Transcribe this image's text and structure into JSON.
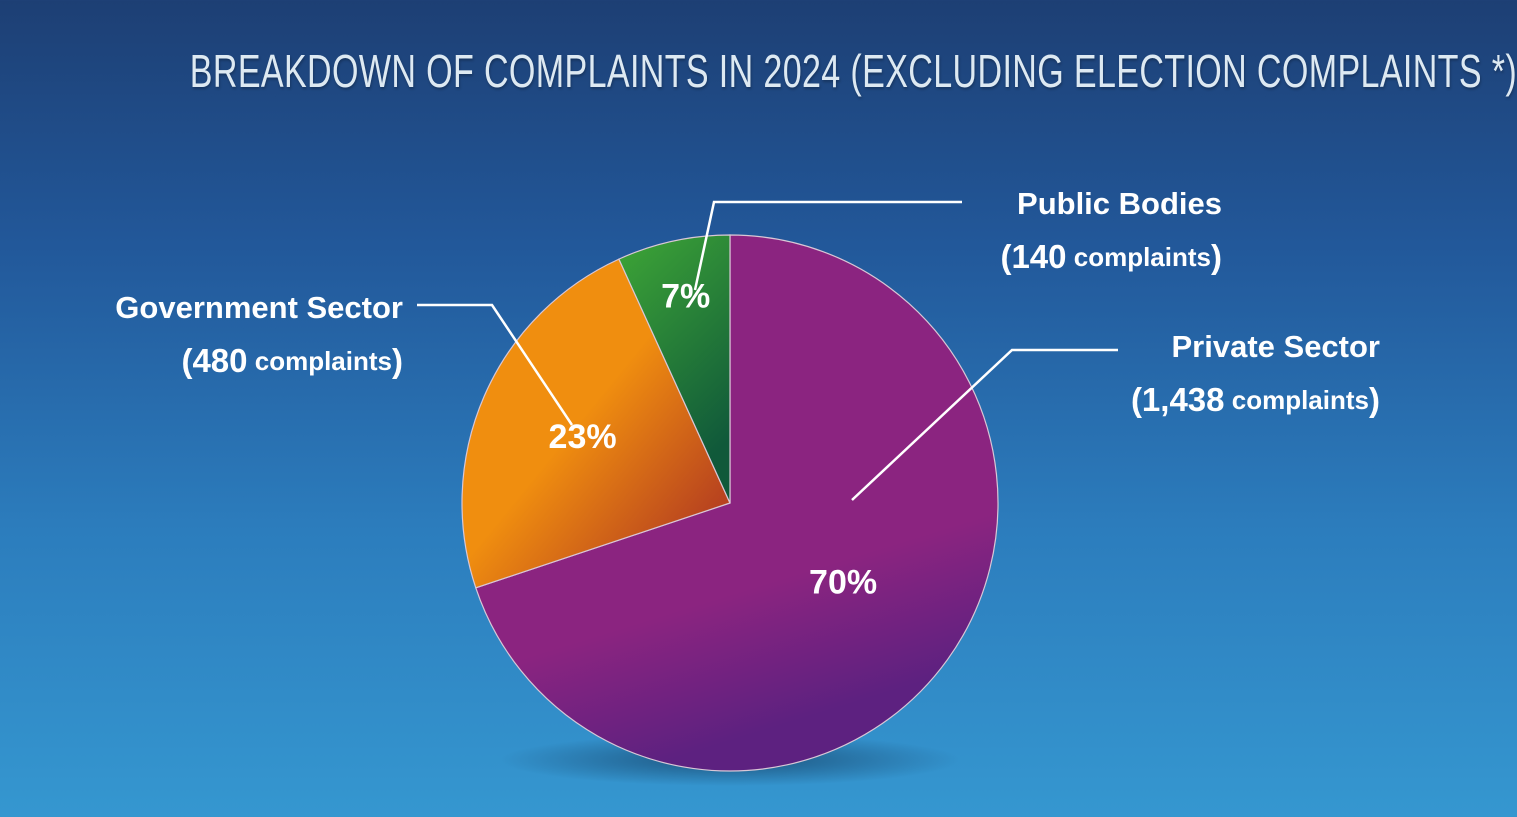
{
  "chart_data": {
    "type": "pie",
    "title": "BREAKDOWN OF COMPLAINTS IN 2024 (EXCLUDING ELECTION COMPLAINTS *)",
    "slices": [
      {
        "name": "Private Sector",
        "value": 1438,
        "percent_label": "70%",
        "count_label": "1,438",
        "unit_label": "complaints",
        "color": "#8b2480",
        "color_dark": "#5d2180"
      },
      {
        "name": "Government Sector",
        "value": 480,
        "percent_label": "23%",
        "count_label": "480",
        "unit_label": "complaints",
        "color": "#f08e0f",
        "color_dark": "#b8431f"
      },
      {
        "name": "Public Bodies",
        "value": 140,
        "percent_label": "7%",
        "count_label": "140",
        "unit_label": "complaints",
        "color": "#3ea636",
        "color_dark": "#10593a"
      }
    ]
  }
}
